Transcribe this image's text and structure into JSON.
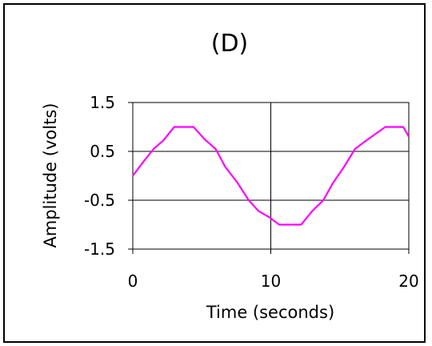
{
  "chart_data": {
    "type": "line",
    "title": "(D)",
    "xlabel": "Time (seconds)",
    "ylabel": "Amplitude (volts)",
    "xlim": [
      0,
      20
    ],
    "ylim": [
      -1.5,
      1.5
    ],
    "xticks": [
      0,
      10,
      20
    ],
    "yticks": [
      1.5,
      0.5,
      -0.5,
      -1.5
    ],
    "x_tick_labels": [
      "0",
      "10",
      "20"
    ],
    "y_tick_labels": [
      "1.5",
      "0.5",
      "-0.5",
      "-1.5"
    ],
    "grid": true,
    "line_color": "#ff00ff",
    "series": [
      {
        "x": [
          0,
          0.8,
          1.5,
          2.2,
          3.0,
          3.7,
          4.4,
          5.2,
          6.0,
          6.7,
          7.6,
          8.4,
          9.1,
          9.9,
          10.6,
          11.4,
          12.2,
          13.0,
          13.8,
          14.5,
          15.3,
          16.1,
          16.9,
          17.6,
          18.3,
          19.1,
          19.6,
          20.0
        ],
        "y": [
          0.0,
          0.3,
          0.55,
          0.72,
          1.0,
          1.0,
          1.0,
          0.75,
          0.55,
          0.18,
          -0.15,
          -0.5,
          -0.72,
          -0.85,
          -1.0,
          -1.0,
          -1.0,
          -0.72,
          -0.5,
          -0.15,
          0.18,
          0.55,
          0.72,
          0.86,
          1.0,
          1.0,
          1.0,
          0.8
        ]
      }
    ]
  }
}
